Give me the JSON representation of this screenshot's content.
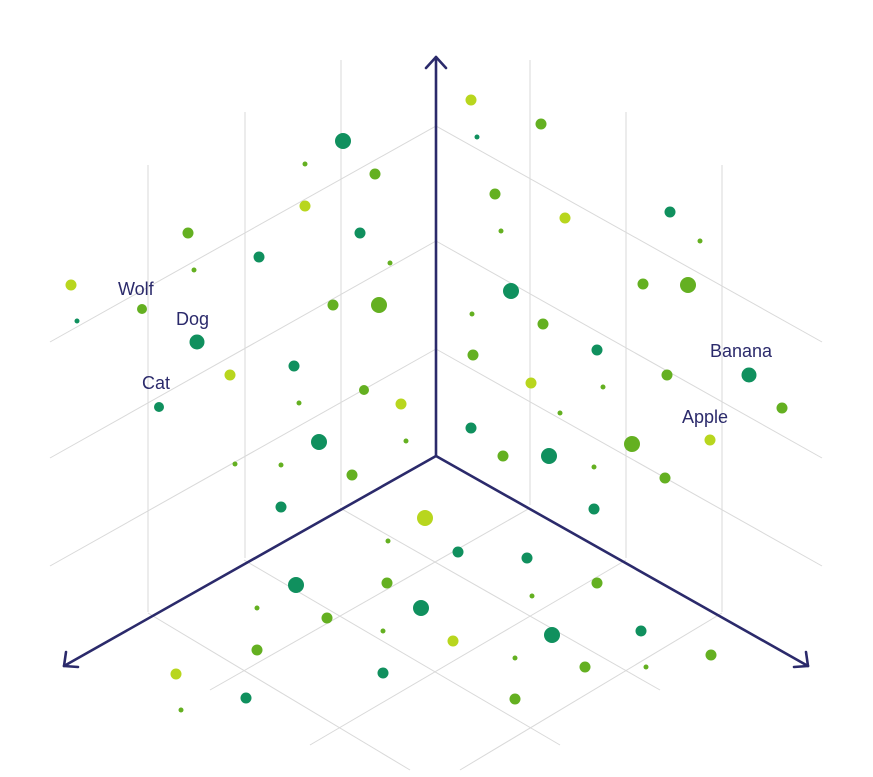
{
  "palette": {
    "dark": "#10905e",
    "mid": "#64b021",
    "light": "#b8d61e",
    "axis": "#2b2a6b",
    "grid": "#d9d9d9"
  },
  "labels": {
    "wolf": "Wolf",
    "dog": "Dog",
    "cat": "Cat",
    "banana": "Banana",
    "apple": "Apple"
  },
  "icons": {
    "up_arrow": "arrow-up-icon",
    "left_arrow": "arrow-down-left-icon",
    "right_arrow": "arrow-down-right-icon"
  }
}
